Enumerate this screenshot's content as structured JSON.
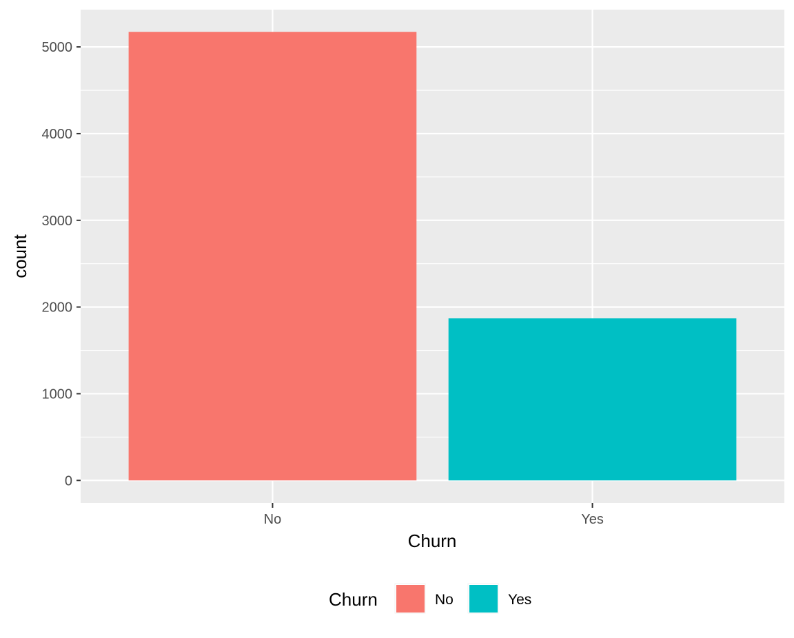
{
  "chart_data": {
    "type": "bar",
    "categories": [
      "No",
      "Yes"
    ],
    "values": [
      5174,
      1869
    ],
    "colors": [
      "#F8766D",
      "#00BFC4"
    ],
    "xlabel": "Churn",
    "ylabel": "count",
    "ylim": [
      -260,
      5430
    ],
    "yticks": [
      0,
      1000,
      2000,
      3000,
      4000,
      5000
    ],
    "ytick_labels": [
      "0",
      "1000",
      "2000",
      "3000",
      "4000",
      "5000"
    ],
    "grid": true,
    "panel_background": "#EBEBEB",
    "grid_color": "#FFFFFF",
    "legend": {
      "title": "Churn",
      "position": "bottom",
      "entries": [
        {
          "label": "No",
          "color": "#F8766D"
        },
        {
          "label": "Yes",
          "color": "#00BFC4"
        }
      ]
    }
  }
}
